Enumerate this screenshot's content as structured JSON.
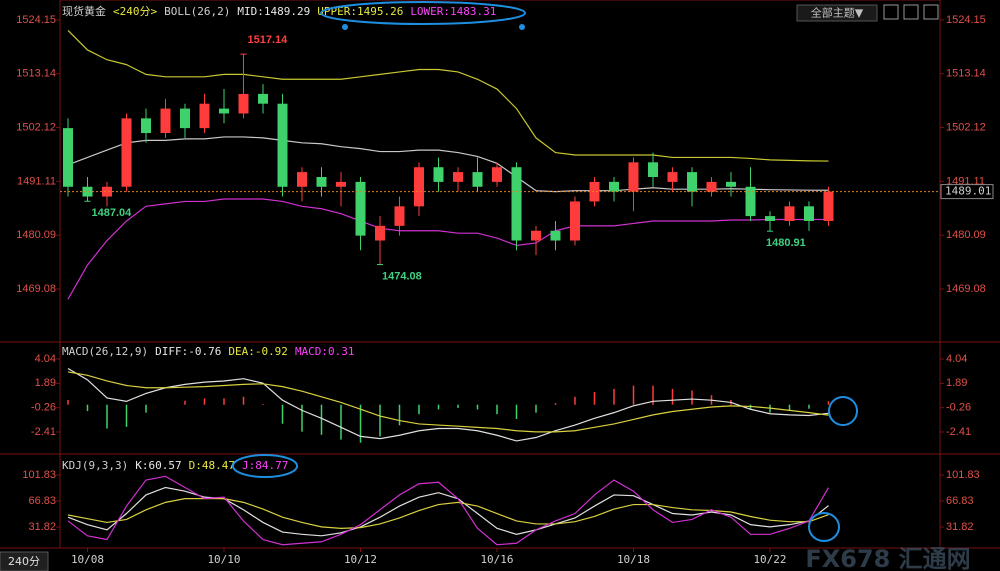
{
  "period_tab": "240分",
  "theme_button": "全部主题▼",
  "watermark": "FX678 汇通网",
  "chart_data": [
    {
      "type": "candlestick",
      "title": "现货黄金",
      "period": "<240分>",
      "indicator": "BOLL(26,2)",
      "readouts": [
        "MID:1489.29",
        "UPPER:1495.26",
        "LOWER:1483.31"
      ],
      "categories": [
        null,
        "10/08",
        null,
        null,
        null,
        null,
        null,
        null,
        "10/10",
        null,
        null,
        null,
        null,
        null,
        null,
        "10/12",
        null,
        null,
        null,
        null,
        null,
        null,
        "10/16",
        null,
        null,
        null,
        null,
        null,
        null,
        "10/18",
        null,
        null,
        null,
        null,
        null,
        null,
        "10/22",
        null,
        null,
        null
      ],
      "up_color": "#ff3c3c",
      "down_color": "#3fd26c",
      "ohlc": [
        [
          1502,
          1504,
          1488,
          1490
        ],
        [
          1490,
          1492,
          1487.04,
          1488
        ],
        [
          1488,
          1491,
          1486,
          1490
        ],
        [
          1490,
          1505,
          1489,
          1504
        ],
        [
          1504,
          1506,
          1499,
          1501
        ],
        [
          1501,
          1508,
          1500,
          1506
        ],
        [
          1506,
          1507,
          1500,
          1502
        ],
        [
          1502,
          1509,
          1501,
          1507
        ],
        [
          1506,
          1510,
          1503,
          1505
        ],
        [
          1505,
          1517.14,
          1504,
          1509
        ],
        [
          1509,
          1511,
          1505,
          1507
        ],
        [
          1507,
          1509,
          1488,
          1490
        ],
        [
          1490,
          1494,
          1487,
          1493
        ],
        [
          1492,
          1494,
          1488,
          1490
        ],
        [
          1490,
          1493,
          1486,
          1491
        ],
        [
          1491,
          1492,
          1477,
          1480
        ],
        [
          1479,
          1484,
          1474.08,
          1482
        ],
        [
          1482,
          1488,
          1480,
          1486
        ],
        [
          1486,
          1495,
          1484,
          1494
        ],
        [
          1494,
          1496,
          1489,
          1491
        ],
        [
          1491,
          1494,
          1489,
          1493
        ],
        [
          1493,
          1496,
          1489,
          1490
        ],
        [
          1491,
          1495,
          1490,
          1494
        ],
        [
          1494,
          1495,
          1477,
          1479
        ],
        [
          1479,
          1482,
          1476,
          1481
        ],
        [
          1481,
          1483,
          1477,
          1479
        ],
        [
          1479,
          1488,
          1478,
          1487
        ],
        [
          1487,
          1492,
          1486,
          1491
        ],
        [
          1491,
          1492,
          1487,
          1489
        ],
        [
          1489,
          1496,
          1485,
          1495
        ],
        [
          1495,
          1497,
          1490,
          1492
        ],
        [
          1491,
          1494,
          1489,
          1493
        ],
        [
          1493,
          1494,
          1486,
          1489
        ],
        [
          1489,
          1492,
          1488,
          1491
        ],
        [
          1491,
          1493,
          1488,
          1490
        ],
        [
          1490,
          1494,
          1483,
          1484
        ],
        [
          1484,
          1485,
          1480.91,
          1483
        ],
        [
          1483,
          1487,
          1482,
          1486
        ],
        [
          1486,
          1487,
          1481,
          1483
        ],
        [
          1483,
          1490,
          1482,
          1489.01
        ]
      ],
      "series": [
        {
          "color": "#c8c8c8",
          "values": [
            1494.5,
            1496,
            1497.5,
            1499,
            1499.5,
            1499.5,
            1499.8,
            1499.8,
            1500.2,
            1500.2,
            1500,
            1499.5,
            1499,
            1498.8,
            1498.2,
            1497.8,
            1497.2,
            1497.2,
            1497.5,
            1497.5,
            1497,
            1496.2,
            1494.8,
            1492,
            1489.2,
            1489,
            1489.2,
            1489.2,
            1489.2,
            1489.5,
            1489.8,
            1489.5,
            1489.5,
            1489.5,
            1489.6,
            1489.5,
            1489.4,
            1489.35,
            1489.3,
            1489.29
          ]
        },
        {
          "color": "#c8c832",
          "values": [
            1522,
            1518,
            1516,
            1515,
            1513,
            1512.5,
            1512.5,
            1512.5,
            1513,
            1513,
            1512.5,
            1512,
            1512,
            1512,
            1512,
            1512.5,
            1513,
            1513.5,
            1514,
            1514,
            1513.5,
            1512,
            1510,
            1506,
            1500,
            1497,
            1496.5,
            1496.5,
            1496.5,
            1496.5,
            1496.5,
            1496,
            1496,
            1496,
            1496,
            1495.8,
            1495.5,
            1495.4,
            1495.3,
            1495.26
          ]
        },
        {
          "color": "#d030d0",
          "values": [
            1467,
            1474,
            1479,
            1483,
            1486,
            1486.5,
            1487,
            1487,
            1487.5,
            1487.5,
            1487.5,
            1487,
            1486,
            1485.5,
            1484.5,
            1483,
            1481.5,
            1481,
            1481,
            1481,
            1480.5,
            1480.5,
            1479.5,
            1478,
            1478.5,
            1481,
            1482,
            1482,
            1482,
            1482.5,
            1483,
            1483,
            1483,
            1483,
            1483.2,
            1483.2,
            1483.3,
            1483.3,
            1483.3,
            1483.31
          ]
        }
      ],
      "ylim": [
        1458.64,
        1527.2
      ],
      "yticks": [
        1524.15,
        1513.14,
        1502.12,
        1491.11,
        1480.09,
        1469.08
      ]
    },
    {
      "type": "macd",
      "title": "MACD(26,12,9)",
      "readouts": [
        "DIFF:-0.76",
        "DEA:-0.92",
        "MACD:0.31"
      ],
      "series": [
        {
          "color": "#e0e0e0",
          "values": [
            3.2,
            2.2,
            0.6,
            0.3,
            1.0,
            1.5,
            1.8,
            2.0,
            2.1,
            2.3,
            1.9,
            0.4,
            -0.5,
            -1.2,
            -2.0,
            -2.8,
            -3.0,
            -2.7,
            -2.3,
            -2.1,
            -2.1,
            -2.3,
            -2.7,
            -3.2,
            -2.9,
            -2.3,
            -1.8,
            -1.2,
            -0.7,
            -0.1,
            0.3,
            0.4,
            0.5,
            0.4,
            0.2,
            -0.4,
            -0.8,
            -0.9,
            -0.95,
            -0.76
          ]
        },
        {
          "color": "#d8d040",
          "values": [
            2.9,
            2.6,
            2.1,
            1.7,
            1.5,
            1.5,
            1.55,
            1.6,
            1.7,
            1.8,
            1.85,
            1.6,
            1.2,
            0.7,
            0.2,
            -0.4,
            -1.0,
            -1.4,
            -1.7,
            -1.8,
            -1.9,
            -2.0,
            -2.1,
            -2.3,
            -2.4,
            -2.4,
            -2.3,
            -2.0,
            -1.7,
            -1.3,
            -0.9,
            -0.6,
            -0.4,
            -0.2,
            -0.1,
            -0.15,
            -0.3,
            -0.5,
            -0.7,
            -0.92
          ]
        }
      ],
      "bars": {
        "up_color": "#ff3c3c",
        "down_color": "#3fd26c",
        "values": [
          0.42,
          -0.56,
          -2.1,
          -1.96,
          -0.7,
          0,
          0.35,
          0.56,
          0.56,
          0.7,
          0.07,
          -1.68,
          -2.38,
          -2.66,
          -3.08,
          -3.36,
          -2.8,
          -1.82,
          -0.84,
          -0.42,
          -0.28,
          -0.42,
          -0.84,
          -1.26,
          -0.7,
          0.14,
          0.7,
          1.12,
          1.4,
          1.68,
          1.68,
          1.4,
          1.26,
          0.84,
          0.42,
          -0.35,
          -0.7,
          -0.56,
          -0.35,
          0.31
        ]
      },
      "ylim": [
        -4.18,
        5.28
      ],
      "yticks": [
        4.04,
        1.89,
        -0.26,
        -2.41
      ]
    },
    {
      "type": "kdj",
      "title": "KDJ(9,3,3)",
      "readouts": [
        "K:60.57",
        "D:48.47",
        "J:84.77"
      ],
      "series": [
        {
          "color": "#e0e0e0",
          "values": [
            45,
            35,
            28,
            50,
            75,
            85,
            80,
            72,
            70,
            55,
            38,
            25,
            22,
            20,
            24,
            32,
            45,
            60,
            72,
            78,
            70,
            50,
            30,
            22,
            28,
            36,
            44,
            60,
            75,
            74,
            62,
            50,
            48,
            52,
            48,
            35,
            32,
            35,
            40,
            60.57
          ]
        },
        {
          "color": "#d8d040",
          "values": [
            48,
            43,
            38,
            42,
            55,
            65,
            70,
            70,
            70,
            65,
            56,
            45,
            38,
            32,
            30,
            31,
            36,
            44,
            54,
            62,
            65,
            60,
            50,
            40,
            36,
            36,
            39,
            46,
            56,
            62,
            62,
            58,
            55,
            54,
            52,
            46,
            41,
            39,
            39,
            48.47
          ]
        },
        {
          "color": "#d030d0",
          "values": [
            40,
            20,
            15,
            60,
            95,
            100,
            85,
            70,
            72,
            40,
            15,
            8,
            10,
            12,
            22,
            35,
            55,
            75,
            90,
            92,
            70,
            30,
            8,
            10,
            28,
            40,
            50,
            75,
            95,
            80,
            55,
            38,
            42,
            55,
            45,
            22,
            22,
            30,
            40,
            84.77
          ]
        }
      ],
      "ylim": [
        3.6,
        128.7
      ],
      "yticks": [
        101.83,
        66.83,
        31.82
      ]
    }
  ]
}
